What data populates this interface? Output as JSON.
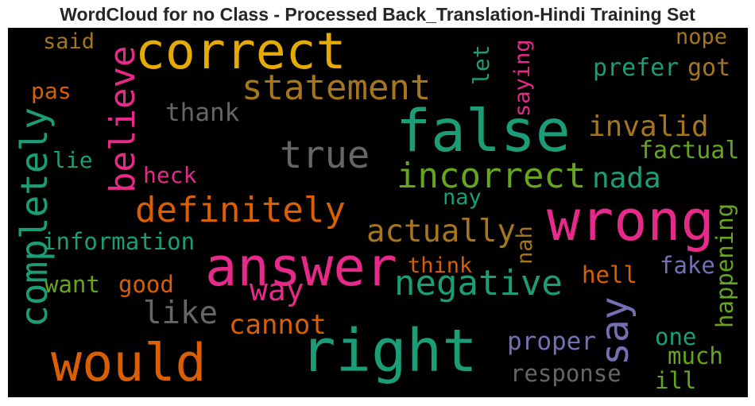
{
  "title": "WordCloud for no Class - Processed Back_Translation-Hindi Training Set",
  "palette": {
    "green": "#1b9e77",
    "orange": "#d95f02",
    "purple": "#7570b3",
    "pink": "#e7298a",
    "lime": "#66a61e",
    "gold": "#e6ab02",
    "brown": "#a6761d",
    "gray": "#666666"
  },
  "words": {
    "correct": "correct",
    "false": "false",
    "wrong": "wrong",
    "right": "right",
    "answer": "answer",
    "would": "would",
    "statement": "statement",
    "believe": "believe",
    "true": "true",
    "incorrect": "incorrect",
    "definitely": "definitely",
    "completely": "completely",
    "say": "say",
    "negative": "negative",
    "invalid": "invalid",
    "actually": "actually",
    "cannot": "cannot",
    "way": "way",
    "like": "like",
    "nada": "nada",
    "factual": "factual",
    "said": "said",
    "nope": "nope",
    "prefer": "prefer",
    "got": "got",
    "let": "let",
    "saying": "saying",
    "pas": "pas",
    "thank": "thank",
    "lie": "lie",
    "heck": "heck",
    "nay": "nay",
    "information": "information",
    "nah": "nah",
    "think": "think",
    "want": "want",
    "good": "good",
    "hell": "hell",
    "fake": "fake",
    "happening": "happening",
    "proper": "proper",
    "one": "one",
    "much": "much",
    "response": "response",
    "ill": "ill"
  }
}
